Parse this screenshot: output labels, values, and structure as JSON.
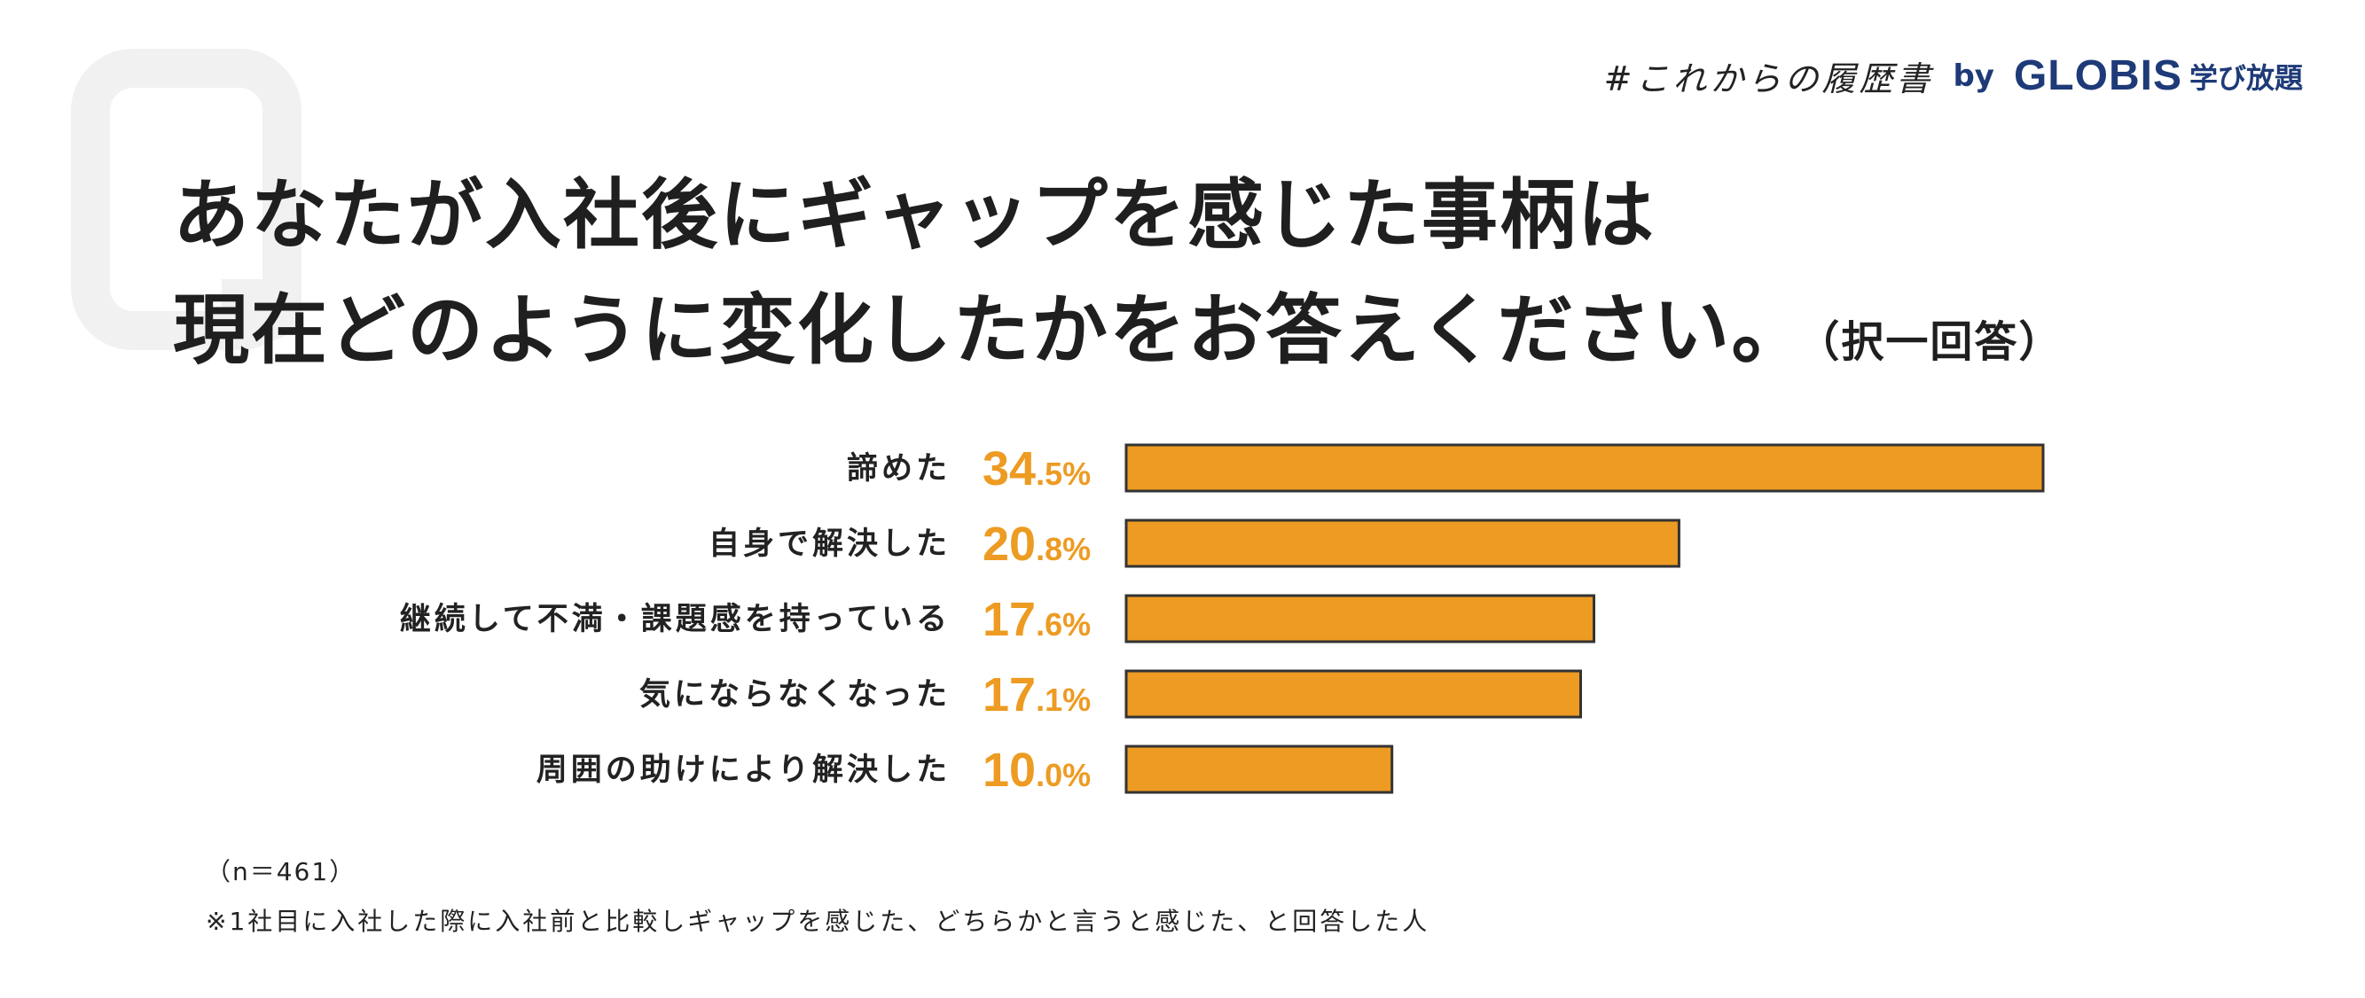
{
  "brand": {
    "hashtag": "#これからの履歴書",
    "by": "by",
    "globis": "GLOBIS",
    "service": "学び放題"
  },
  "question": {
    "line1": "あなたが入社後にギャップを感じた事柄は",
    "line2": "現在どのように変化したかをお答えください。",
    "note": "（択一回答）"
  },
  "chart_data": {
    "type": "bar",
    "orientation": "horizontal",
    "categories": [
      "諦めた",
      "自身で解決した",
      "継続して不満・課題感を持っている",
      "気にならなくなった",
      "周囲の助けにより解決した"
    ],
    "values": [
      34.5,
      20.8,
      17.6,
      17.1,
      10.0
    ],
    "value_labels": [
      {
        "int": "34",
        "dec": ".5%"
      },
      {
        "int": "20",
        "dec": ".8%"
      },
      {
        "int": "17",
        "dec": ".6%"
      },
      {
        "int": "17",
        "dec": ".1%"
      },
      {
        "int": "10",
        "dec": ".0%"
      }
    ],
    "bar_color": "#ed9b22",
    "label_color": "#ed9b22"
  },
  "footer": {
    "n": "（n＝461）",
    "note": "※1社目に入社した際に入社前と比較しギャップを感じた、どちらかと言うと感じた、と回答した人"
  }
}
